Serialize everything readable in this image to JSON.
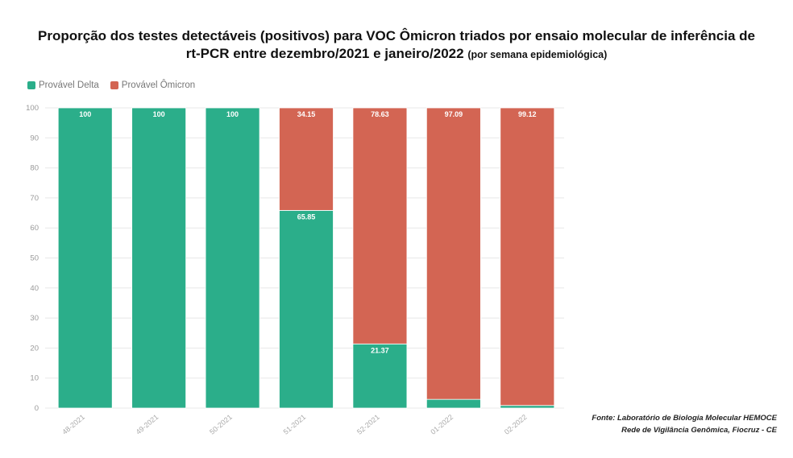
{
  "chart_data": {
    "type": "bar",
    "stacked": true,
    "title_main": "Proporção dos testes detectáveis (positivos) para VOC Ômicron triados por ensaio molecular de inferência de rt-PCR entre dezembro/2021 e janeiro/2022",
    "title_sub": "(por semana epidemiológica)",
    "categories": [
      "48-2021",
      "49-2021",
      "50-2021",
      "51-2021",
      "52-2021",
      "01-2022",
      "02-2022"
    ],
    "series": [
      {
        "name": "Provável Delta",
        "color": "#2bae8a",
        "values": [
          100,
          100,
          100,
          65.85,
          21.37,
          2.91,
          0.88
        ],
        "labels": [
          "100",
          "100",
          "100",
          "65.85",
          "21.37",
          "",
          ""
        ]
      },
      {
        "name": "Provável Ômicron",
        "color": "#d36553",
        "values": [
          0,
          0,
          0,
          34.15,
          78.63,
          97.09,
          99.12
        ],
        "labels": [
          "",
          "",
          "",
          "34.15",
          "78.63",
          "97.09",
          "99.12"
        ]
      }
    ],
    "ylim": [
      0,
      100
    ],
    "yticks": [
      0,
      10,
      20,
      30,
      40,
      50,
      60,
      70,
      80,
      90,
      100
    ],
    "legend_position": "top-left",
    "grid": true
  },
  "source": {
    "line1": "Fonte: Laboratório  de Biologia  Molecular HEMOCE",
    "line2": "Rede de Vigilância  Genômica,  Fiocruz - CE"
  }
}
